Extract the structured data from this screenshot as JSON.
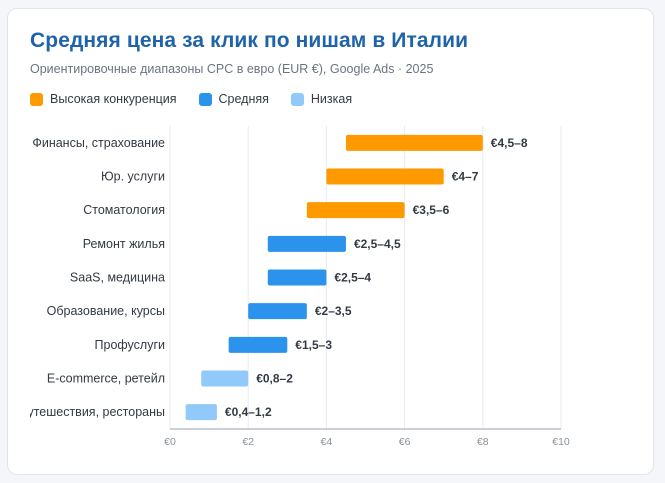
{
  "chart_data": {
    "type": "bar",
    "orientation": "horizontal-range",
    "title": "Средняя цена за клик по нишам в Италии",
    "subtitle": "Ориентировочные диапазоны CPC в евро (EUR €), Google Ads · 2025",
    "legend": [
      {
        "name": "Высокая конкуренция",
        "color": "#ff9900"
      },
      {
        "name": "Средняя",
        "color": "#2b93ec"
      },
      {
        "name": "Низкая",
        "color": "#91c9fa"
      }
    ],
    "legend_placement": "top-left",
    "grid": true,
    "xlim": [
      0,
      10
    ],
    "x_ticks": [
      {
        "value": 0,
        "label": "€0"
      },
      {
        "value": 2,
        "label": "€2"
      },
      {
        "value": 4,
        "label": "€4"
      },
      {
        "value": 6,
        "label": "€6"
      },
      {
        "value": 8,
        "label": "€8"
      },
      {
        "value": 10,
        "label": "€10"
      }
    ],
    "categories": [
      {
        "label": "Финансы, страхование",
        "min": 4.5,
        "max": 8,
        "level": 0,
        "value_label": "€4,5–8"
      },
      {
        "label": "Юр. услуги",
        "min": 4,
        "max": 7,
        "level": 0,
        "value_label": "€4–7"
      },
      {
        "label": "Стоматология",
        "min": 3.5,
        "max": 6,
        "level": 0,
        "value_label": "€3,5–6"
      },
      {
        "label": "Ремонт жилья",
        "min": 2.5,
        "max": 4.5,
        "level": 1,
        "value_label": "€2,5–4,5"
      },
      {
        "label": "SaaS, медицина",
        "min": 2.5,
        "max": 4,
        "level": 1,
        "value_label": "€2,5–4"
      },
      {
        "label": "Образование, курсы",
        "min": 2,
        "max": 3.5,
        "level": 1,
        "value_label": "€2–3,5"
      },
      {
        "label": "Профуслуги",
        "min": 1.5,
        "max": 3,
        "level": 1,
        "value_label": "€1,5–3"
      },
      {
        "label": "E-commerce, ретейл",
        "min": 0.8,
        "max": 2,
        "level": 2,
        "value_label": "€0,8–2"
      },
      {
        "label": "Путешествия, рестораны",
        "min": 0.4,
        "max": 1.2,
        "level": 2,
        "value_label": "€0,4–1,2"
      }
    ]
  }
}
